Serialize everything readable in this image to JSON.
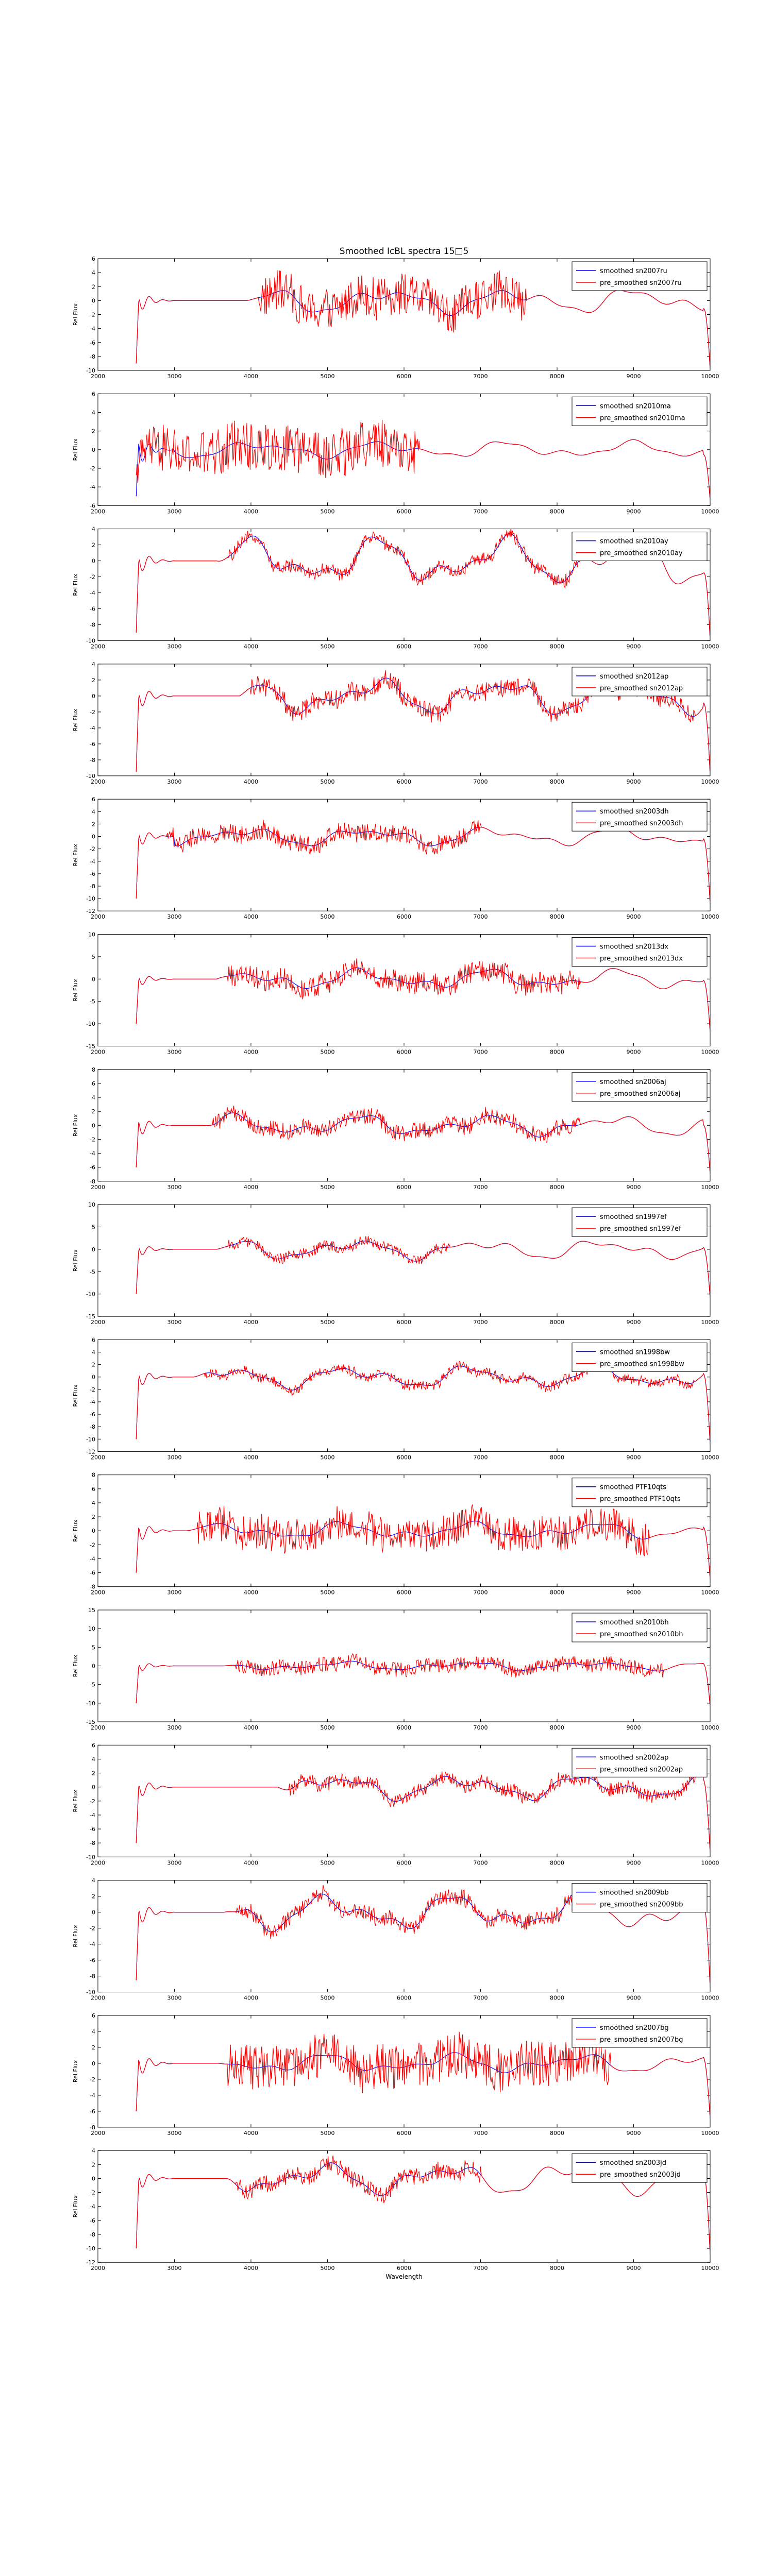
{
  "page": {
    "title": "Smoothed IcBL spectra 15□5"
  },
  "colors": {
    "smoothed": "#0000ff",
    "pre_smoothed": "#ff0000",
    "axes": "#000000",
    "background": "#ffffff"
  },
  "chart_data": [
    {
      "type": "line",
      "title": "Smoothed IcBL spectra 15□5",
      "ylabel": "Rel Flux",
      "xlabel": "",
      "xlim": [
        2000,
        10000
      ],
      "ylim": [
        -10,
        6
      ],
      "xticks": [
        "2000",
        "3000",
        "4000",
        "5000",
        "6000",
        "7000",
        "8000",
        "9000",
        "10000"
      ],
      "yticks": [
        "-10",
        "-8",
        "-6",
        "-4",
        "-2",
        "0",
        "2",
        "4",
        "6"
      ],
      "legend": "top-right",
      "grid": false,
      "series": [
        {
          "name": "smoothed sn2007ru",
          "color": "#0000ff"
        },
        {
          "name": "pre_smoothed sn2007ru",
          "color": "#ff0000"
        }
      ],
      "profile": {
        "start": 2500,
        "end": 10000,
        "dip": -9,
        "end_dip": -10,
        "noise": 3.0,
        "noise_lo": 4100,
        "noise_hi": 7600,
        "amp": 1.2
      }
    },
    {
      "type": "line",
      "title": "",
      "ylabel": "Rel Flux",
      "xlabel": "",
      "xlim": [
        2000,
        10000
      ],
      "ylim": [
        -6,
        6
      ],
      "xticks": [
        "2000",
        "3000",
        "4000",
        "5000",
        "6000",
        "7000",
        "8000",
        "9000",
        "10000"
      ],
      "yticks": [
        "-6",
        "-4",
        "-2",
        "0",
        "2",
        "4",
        "6"
      ],
      "legend": "top-right",
      "grid": false,
      "series": [
        {
          "name": "smoothed sn2010ma",
          "color": "#0000ff"
        },
        {
          "name": "pre_smoothed sn2010ma",
          "color": "#ff0000"
        }
      ],
      "profile": {
        "start": 2500,
        "end": 10000,
        "dip": -5,
        "end_dip": -5.5,
        "noise": 2.6,
        "noise_lo": 2500,
        "noise_hi": 6200,
        "amp": 0.6
      }
    },
    {
      "type": "line",
      "title": "",
      "ylabel": "Rel Flux",
      "xlabel": "",
      "xlim": [
        2000,
        10000
      ],
      "ylim": [
        -10,
        4
      ],
      "xticks": [
        "2000",
        "3000",
        "4000",
        "5000",
        "6000",
        "7000",
        "8000",
        "9000",
        "10000"
      ],
      "yticks": [
        "-10",
        "-8",
        "-6",
        "-4",
        "-2",
        "0",
        "2",
        "4"
      ],
      "legend": "top-right",
      "grid": false,
      "series": [
        {
          "name": "smoothed sn2010ay",
          "color": "#0000ff"
        },
        {
          "name": "pre_smoothed sn2010ay",
          "color": "#ff0000"
        }
      ],
      "profile": {
        "start": 2500,
        "end": 10000,
        "dip": -9,
        "end_dip": -10,
        "noise": 0.8,
        "noise_lo": 3700,
        "noise_hi": 8300,
        "amp": 2.0
      }
    },
    {
      "type": "line",
      "title": "",
      "ylabel": "Rel Flux",
      "xlabel": "",
      "xlim": [
        2000,
        10000
      ],
      "ylim": [
        -10,
        4
      ],
      "xticks": [
        "2000",
        "3000",
        "4000",
        "5000",
        "6000",
        "7000",
        "8000",
        "9000",
        "10000"
      ],
      "yticks": [
        "-10",
        "-8",
        "-6",
        "-4",
        "-2",
        "0",
        "2",
        "4"
      ],
      "legend": "top-right",
      "grid": false,
      "series": [
        {
          "name": "smoothed sn2012ap",
          "color": "#0000ff"
        },
        {
          "name": "pre_smoothed sn2012ap",
          "color": "#ff0000"
        }
      ],
      "profile": {
        "start": 2500,
        "end": 10000,
        "dip": -9.5,
        "end_dip": -10,
        "noise": 1.2,
        "noise_lo": 4000,
        "noise_hi": 9800,
        "amp": 1.5
      }
    },
    {
      "type": "line",
      "title": "",
      "ylabel": "Rel Flux",
      "xlabel": "",
      "xlim": [
        2000,
        10000
      ],
      "ylim": [
        -12,
        6
      ],
      "xticks": [
        "2000",
        "3000",
        "4000",
        "5000",
        "6000",
        "7000",
        "8000",
        "9000",
        "10000"
      ],
      "yticks": [
        "-12",
        "-10",
        "-8",
        "-6",
        "-4",
        "-2",
        "0",
        "2",
        "4",
        "6"
      ],
      "legend": "top-right",
      "grid": false,
      "series": [
        {
          "name": "smoothed sn2003dh",
          "color": "#0000ff"
        },
        {
          "name": "pre_smoothed sn2003dh",
          "color": "#ff0000"
        }
      ],
      "profile": {
        "start": 2500,
        "end": 10000,
        "dip": -10,
        "end_dip": -11,
        "noise": 1.5,
        "noise_lo": 2900,
        "noise_hi": 7000,
        "amp": 1.0
      }
    },
    {
      "type": "line",
      "title": "",
      "ylabel": "Rel Flux",
      "xlabel": "",
      "xlim": [
        2000,
        10000
      ],
      "ylim": [
        -15,
        10
      ],
      "xticks": [
        "2000",
        "3000",
        "4000",
        "5000",
        "6000",
        "7000",
        "8000",
        "9000",
        "10000"
      ],
      "yticks": [
        "-15",
        "-10",
        "-5",
        "0",
        "5",
        "10"
      ],
      "legend": "top-right",
      "grid": false,
      "series": [
        {
          "name": "smoothed sn2013dx",
          "color": "#0000ff"
        },
        {
          "name": "pre_smoothed sn2013dx",
          "color": "#ff0000"
        }
      ],
      "profile": {
        "start": 2500,
        "end": 10000,
        "dip": -10,
        "end_dip": -12,
        "noise": 2.5,
        "noise_lo": 3700,
        "noise_hi": 8300,
        "amp": 1.5
      }
    },
    {
      "type": "line",
      "title": "",
      "ylabel": "Rel Flux",
      "xlabel": "",
      "xlim": [
        2000,
        10000
      ],
      "ylim": [
        -8,
        8
      ],
      "xticks": [
        "2000",
        "3000",
        "4000",
        "5000",
        "6000",
        "7000",
        "8000",
        "9000",
        "10000"
      ],
      "yticks": [
        "-8",
        "-6",
        "-4",
        "-2",
        "0",
        "2",
        "4",
        "6",
        "8"
      ],
      "legend": "top-right",
      "grid": false,
      "series": [
        {
          "name": "smoothed sn2006aj",
          "color": "#0000ff"
        },
        {
          "name": "pre_smoothed sn2006aj",
          "color": "#ff0000"
        }
      ],
      "profile": {
        "start": 2500,
        "end": 10000,
        "dip": -6,
        "end_dip": -7,
        "noise": 1.2,
        "noise_lo": 3500,
        "noise_hi": 8300,
        "amp": 1.0
      }
    },
    {
      "type": "line",
      "title": "",
      "ylabel": "Rel Flux",
      "xlabel": "",
      "xlim": [
        2000,
        10000
      ],
      "ylim": [
        -15,
        10
      ],
      "xticks": [
        "2000",
        "3000",
        "4000",
        "5000",
        "6000",
        "7000",
        "8000",
        "9000",
        "10000"
      ],
      "yticks": [
        "-15",
        "-10",
        "-5",
        "0",
        "5",
        "10"
      ],
      "legend": "top-right",
      "grid": false,
      "series": [
        {
          "name": "smoothed sn1997ef",
          "color": "#0000ff"
        },
        {
          "name": "pre_smoothed sn1997ef",
          "color": "#ff0000"
        }
      ],
      "profile": {
        "start": 2500,
        "end": 10000,
        "dip": -10,
        "end_dip": -11,
        "noise": 1.2,
        "noise_lo": 3700,
        "noise_hi": 6600,
        "amp": 1.5
      }
    },
    {
      "type": "line",
      "title": "",
      "ylabel": "Rel Flux",
      "xlabel": "",
      "xlim": [
        2000,
        10000
      ],
      "ylim": [
        -12,
        6
      ],
      "xticks": [
        "2000",
        "3000",
        "4000",
        "5000",
        "6000",
        "7000",
        "8000",
        "9000",
        "10000"
      ],
      "yticks": [
        "-12",
        "-10",
        "-8",
        "-6",
        "-4",
        "-2",
        "0",
        "2",
        "4",
        "6"
      ],
      "legend": "top-right",
      "grid": false,
      "series": [
        {
          "name": "smoothed sn1998bw",
          "color": "#0000ff"
        },
        {
          "name": "pre_smoothed sn1998bw",
          "color": "#ff0000"
        }
      ],
      "profile": {
        "start": 2500,
        "end": 10000,
        "dip": -10,
        "end_dip": -11,
        "noise": 0.8,
        "noise_lo": 3400,
        "noise_hi": 9800,
        "amp": 1.2
      }
    },
    {
      "type": "line",
      "title": "",
      "ylabel": "Rel Flux",
      "xlabel": "",
      "xlim": [
        2000,
        10000
      ],
      "ylim": [
        -8,
        8
      ],
      "xticks": [
        "2000",
        "3000",
        "4000",
        "5000",
        "6000",
        "7000",
        "8000",
        "9000",
        "10000"
      ],
      "yticks": [
        "-8",
        "-6",
        "-4",
        "-2",
        "0",
        "2",
        "4",
        "6",
        "8"
      ],
      "legend": "top-right",
      "grid": false,
      "series": [
        {
          "name": "smoothed PTF10qts",
          "color": "#0000ff"
        },
        {
          "name": "pre_smoothed PTF10qts",
          "color": "#ff0000"
        }
      ],
      "profile": {
        "start": 2500,
        "end": 10000,
        "dip": -6,
        "end_dip": -7,
        "noise": 2.5,
        "noise_lo": 3300,
        "noise_hi": 9200,
        "amp": 0.8
      }
    },
    {
      "type": "line",
      "title": "",
      "ylabel": "Rel Flux",
      "xlabel": "",
      "xlim": [
        2000,
        10000
      ],
      "ylim": [
        -15,
        15
      ],
      "xticks": [
        "2000",
        "3000",
        "4000",
        "5000",
        "6000",
        "7000",
        "8000",
        "9000",
        "10000"
      ],
      "yticks": [
        "-15",
        "-10",
        "-5",
        "0",
        "5",
        "10",
        "15"
      ],
      "legend": "top-right",
      "grid": false,
      "series": [
        {
          "name": "smoothed sn2010bh",
          "color": "#0000ff"
        },
        {
          "name": "pre_smoothed sn2010bh",
          "color": "#ff0000"
        }
      ],
      "profile": {
        "start": 2500,
        "end": 10000,
        "dip": -10,
        "end_dip": -11,
        "noise": 2.0,
        "noise_lo": 3800,
        "noise_hi": 9400,
        "amp": 0.8
      }
    },
    {
      "type": "line",
      "title": "",
      "ylabel": "Rel Flux",
      "xlabel": "",
      "xlim": [
        2000,
        10000
      ],
      "ylim": [
        -10,
        6
      ],
      "xticks": [
        "2000",
        "3000",
        "4000",
        "5000",
        "6000",
        "7000",
        "8000",
        "9000",
        "10000"
      ],
      "yticks": [
        "-10",
        "-8",
        "-6",
        "-4",
        "-2",
        "0",
        "2",
        "4",
        "6"
      ],
      "legend": "top-right",
      "grid": false,
      "series": [
        {
          "name": "smoothed sn2002ap",
          "color": "#0000ff"
        },
        {
          "name": "pre_smoothed sn2002ap",
          "color": "#ff0000"
        }
      ],
      "profile": {
        "start": 2500,
        "end": 10000,
        "dip": -8,
        "end_dip": -9.5,
        "noise": 1.0,
        "noise_lo": 4500,
        "noise_hi": 9800,
        "amp": 1.2
      }
    },
    {
      "type": "line",
      "title": "",
      "ylabel": "Rel Flux",
      "xlabel": "",
      "xlim": [
        2000,
        10000
      ],
      "ylim": [
        -10,
        4
      ],
      "xticks": [
        "2000",
        "3000",
        "4000",
        "5000",
        "6000",
        "7000",
        "8000",
        "9000",
        "10000"
      ],
      "yticks": [
        "-10",
        "-8",
        "-6",
        "-4",
        "-2",
        "0",
        "2",
        "4"
      ],
      "legend": "top-right",
      "grid": false,
      "series": [
        {
          "name": "smoothed sn2009bb",
          "color": "#0000ff"
        },
        {
          "name": "pre_smoothed sn2009bb",
          "color": "#ff0000"
        }
      ],
      "profile": {
        "start": 2500,
        "end": 10000,
        "dip": -8.5,
        "end_dip": -9.5,
        "noise": 1.0,
        "noise_lo": 3800,
        "noise_hi": 8500,
        "amp": 1.5
      }
    },
    {
      "type": "line",
      "title": "",
      "ylabel": "Rel Flux",
      "xlabel": "",
      "xlim": [
        2000,
        10000
      ],
      "ylim": [
        -8,
        6
      ],
      "xticks": [
        "2000",
        "3000",
        "4000",
        "5000",
        "6000",
        "7000",
        "8000",
        "9000",
        "10000"
      ],
      "yticks": [
        "-8",
        "-6",
        "-4",
        "-2",
        "0",
        "2",
        "4",
        "6"
      ],
      "legend": "top-right",
      "grid": false,
      "series": [
        {
          "name": "smoothed sn2007bg",
          "color": "#0000ff"
        },
        {
          "name": "pre_smoothed sn2007bg",
          "color": "#ff0000"
        }
      ],
      "profile": {
        "start": 2500,
        "end": 10000,
        "dip": -6,
        "end_dip": -7,
        "noise": 2.8,
        "noise_lo": 3700,
        "noise_hi": 8700,
        "amp": 0.8
      }
    },
    {
      "type": "line",
      "title": "",
      "ylabel": "Rel Flux",
      "xlabel": "Wavelength",
      "xlim": [
        2000,
        10000
      ],
      "ylim": [
        -12,
        4
      ],
      "xticks": [
        "2000",
        "3000",
        "4000",
        "5000",
        "6000",
        "7000",
        "8000",
        "9000",
        "10000"
      ],
      "yticks": [
        "-12",
        "-10",
        "-8",
        "-6",
        "-4",
        "-2",
        "0",
        "2",
        "4"
      ],
      "legend": "top-right",
      "grid": false,
      "series": [
        {
          "name": "smoothed sn2003jd",
          "color": "#0000ff"
        },
        {
          "name": "pre_smoothed sn2003jd",
          "color": "#ff0000"
        }
      ],
      "profile": {
        "start": 2500,
        "end": 10000,
        "dip": -10,
        "end_dip": -11,
        "noise": 1.2,
        "noise_lo": 3800,
        "noise_hi": 7000,
        "amp": 1.5
      }
    }
  ]
}
